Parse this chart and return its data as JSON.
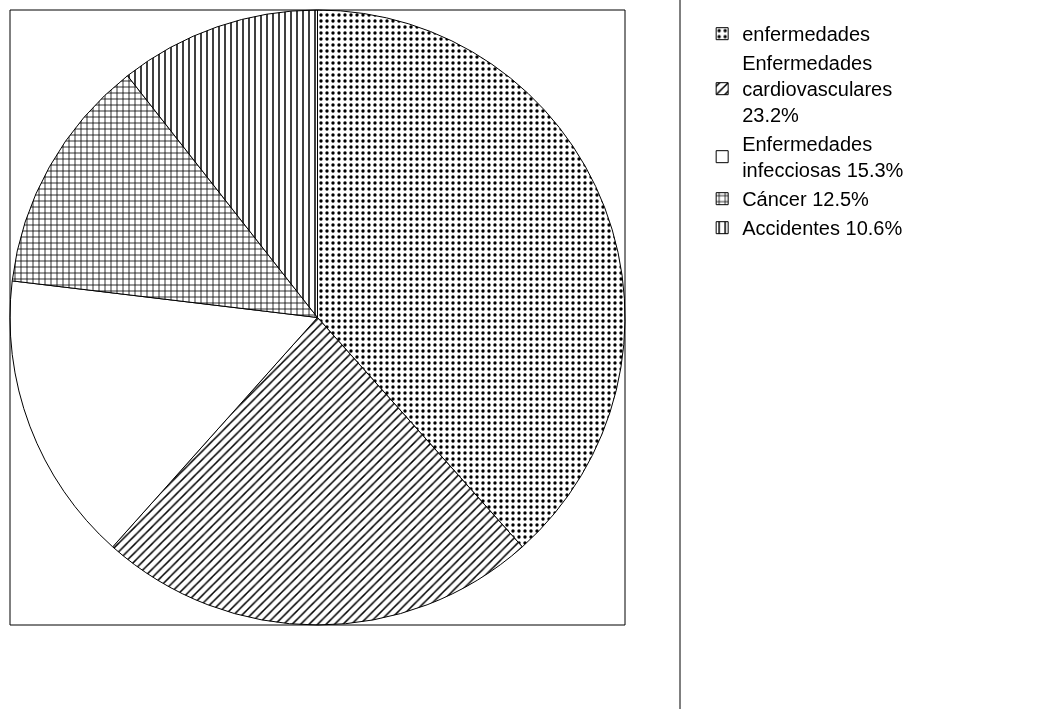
{
  "chart_data": {
    "type": "pie",
    "categories": [
      "enfermedades",
      "Enfermedades cardiovasculares 23.2%",
      "Enfermedades infecciosas 15.3%",
      "Cáncer 12.5%",
      "Accidentes 10.6%"
    ],
    "values": [
      38.4,
      23.2,
      15.3,
      12.5,
      10.6
    ],
    "colors": [
      "#000000",
      "#000000",
      "#ffffff",
      "#000000",
      "#000000"
    ],
    "legend": "right"
  }
}
